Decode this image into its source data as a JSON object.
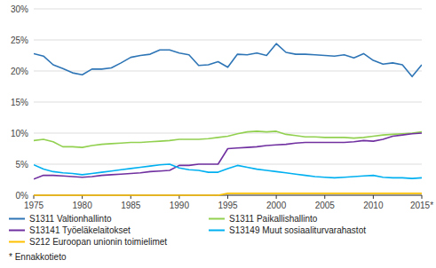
{
  "chart_data": {
    "type": "line",
    "x": [
      1975,
      1976,
      1977,
      1978,
      1979,
      1980,
      1981,
      1982,
      1983,
      1984,
      1985,
      1986,
      1987,
      1988,
      1989,
      1990,
      1991,
      1992,
      1993,
      1994,
      1995,
      1996,
      1997,
      1998,
      1999,
      2000,
      2001,
      2002,
      2003,
      2004,
      2005,
      2006,
      2007,
      2008,
      2009,
      2010,
      2011,
      2012,
      2013,
      2014,
      2015
    ],
    "series": [
      {
        "name": "S1311 Valtionhallinto",
        "color": "#2e75b6",
        "values": [
          22.8,
          22.4,
          21.0,
          20.4,
          19.7,
          19.4,
          20.3,
          20.3,
          20.5,
          21.3,
          22.2,
          22.5,
          22.7,
          23.4,
          23.4,
          22.9,
          22.6,
          20.9,
          21.0,
          21.5,
          20.6,
          22.7,
          22.6,
          22.9,
          22.5,
          24.4,
          23.0,
          22.7,
          22.7,
          22.6,
          22.5,
          22.4,
          22.6,
          22.1,
          22.8,
          21.7,
          21.1,
          21.3,
          21.0,
          19.1,
          21.0
        ]
      },
      {
        "name": "S1311 Paikallishallinto",
        "color": "#92d050",
        "values": [
          8.8,
          9.0,
          8.6,
          7.8,
          7.8,
          7.7,
          8.0,
          8.2,
          8.3,
          8.4,
          8.5,
          8.5,
          8.6,
          8.7,
          8.8,
          9.0,
          9.0,
          9.0,
          9.1,
          9.3,
          9.5,
          9.9,
          10.2,
          10.3,
          10.2,
          10.3,
          9.8,
          9.6,
          9.4,
          9.4,
          9.3,
          9.3,
          9.3,
          9.2,
          9.3,
          9.5,
          9.7,
          9.8,
          9.9,
          10.0,
          10.2
        ]
      },
      {
        "name": "S13141 Työeläkelaitokset",
        "color": "#7030a0",
        "values": [
          2.6,
          3.2,
          3.2,
          3.1,
          3.0,
          2.9,
          3.0,
          3.2,
          3.3,
          3.4,
          3.5,
          3.6,
          3.8,
          3.9,
          4.0,
          4.8,
          4.8,
          5.0,
          5.0,
          5.0,
          7.5,
          7.6,
          7.7,
          7.8,
          8.0,
          8.1,
          8.2,
          8.4,
          8.5,
          8.5,
          8.5,
          8.5,
          8.5,
          8.6,
          8.8,
          8.7,
          9.0,
          9.5,
          9.7,
          9.9,
          10.0
        ]
      },
      {
        "name": "S13149 Muut sosiaaliturvarahastot",
        "color": "#00b0f0",
        "values": [
          4.9,
          4.2,
          3.8,
          3.6,
          3.5,
          3.3,
          3.5,
          3.7,
          3.9,
          4.1,
          4.3,
          4.5,
          4.7,
          4.9,
          5.0,
          4.4,
          4.1,
          4.0,
          3.7,
          3.7,
          4.3,
          4.8,
          4.5,
          4.2,
          4.0,
          3.8,
          3.6,
          3.4,
          3.2,
          3.0,
          2.9,
          2.8,
          2.9,
          3.0,
          3.1,
          3.2,
          2.9,
          2.8,
          2.8,
          2.7,
          2.8
        ]
      },
      {
        "name": "S212 Euroopan unionin toimielimet",
        "color": "#ffc000",
        "values": [
          0.0,
          0.0,
          0.0,
          0.0,
          0.0,
          0.0,
          0.0,
          0.0,
          0.0,
          0.0,
          0.0,
          0.0,
          0.0,
          0.0,
          0.0,
          0.0,
          0.0,
          0.0,
          0.0,
          0.0,
          0.3,
          0.3,
          0.3,
          0.3,
          0.3,
          0.3,
          0.3,
          0.3,
          0.3,
          0.3,
          0.3,
          0.3,
          0.3,
          0.3,
          0.3,
          0.3,
          0.3,
          0.3,
          0.3,
          0.3,
          0.3
        ]
      }
    ],
    "xlim": [
      1975,
      2015
    ],
    "xticks": [
      1975,
      1980,
      1985,
      1990,
      1995,
      2000,
      2005,
      2010,
      {
        "value": 2015,
        "label": "2015*"
      }
    ],
    "ylim": [
      0,
      30
    ],
    "yticks": [
      {
        "value": 0,
        "label": "0%"
      },
      {
        "value": 5,
        "label": "5%"
      },
      {
        "value": 10,
        "label": "10%"
      },
      {
        "value": 15,
        "label": "15%"
      },
      {
        "value": 20,
        "label": "20%"
      },
      {
        "value": 25,
        "label": "25%"
      },
      {
        "value": 30,
        "label": "30%"
      }
    ],
    "grid": true,
    "legend": "bottom",
    "annotations": [
      "* Ennakkotieto"
    ]
  }
}
